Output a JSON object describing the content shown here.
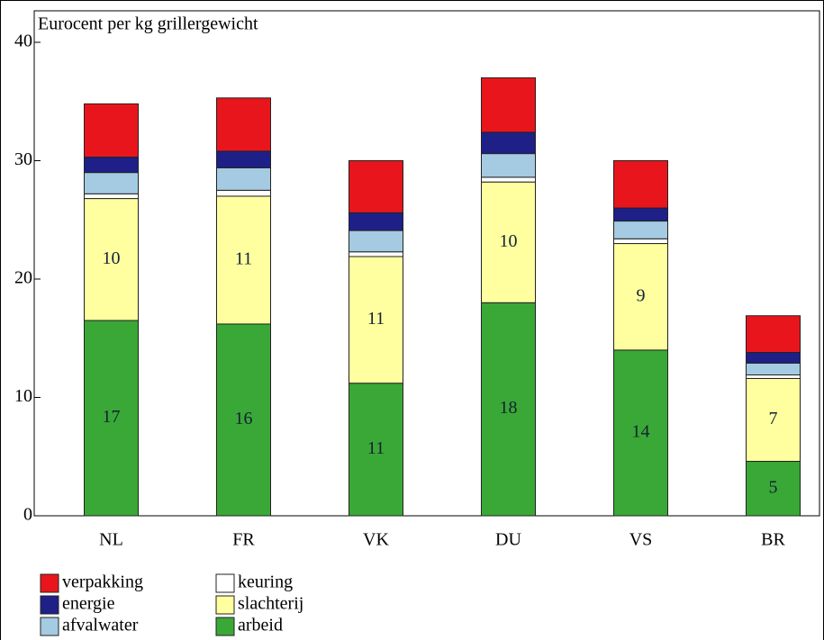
{
  "chart_data": {
    "type": "stacked-bar",
    "ylabel": "Eurocent per kg grillergewicht",
    "categories": [
      "NL",
      "FR",
      "VK",
      "DU",
      "VS",
      "BR"
    ],
    "series": [
      {
        "name": "arbeid",
        "color": "#3aa836",
        "values": [
          16.5,
          16.2,
          11.2,
          18.0,
          14.0,
          4.6
        ],
        "value_labels": [
          "17",
          "16",
          "11",
          "18",
          "14",
          "5"
        ]
      },
      {
        "name": "slachterij",
        "color": "#ffffa0",
        "values": [
          10.3,
          10.8,
          10.7,
          10.2,
          9.0,
          7.0
        ],
        "value_labels": [
          "10",
          "11",
          "11",
          "10",
          "9",
          "7"
        ]
      },
      {
        "name": "keuring",
        "color": "#ffffff",
        "values": [
          0.4,
          0.5,
          0.4,
          0.4,
          0.4,
          0.3
        ]
      },
      {
        "name": "afvalwater",
        "color": "#a4cbe2",
        "values": [
          1.8,
          1.9,
          1.8,
          2.0,
          1.5,
          1.0
        ]
      },
      {
        "name": "energie",
        "color": "#1e2088",
        "values": [
          1.3,
          1.4,
          1.5,
          1.8,
          1.1,
          0.9
        ]
      },
      {
        "name": "verpakking",
        "color": "#e8161c",
        "values": [
          4.5,
          4.5,
          4.4,
          4.6,
          4.0,
          3.1
        ]
      }
    ],
    "ylim": [
      0,
      40
    ],
    "yticks": [
      0,
      10,
      20,
      30,
      40
    ]
  }
}
